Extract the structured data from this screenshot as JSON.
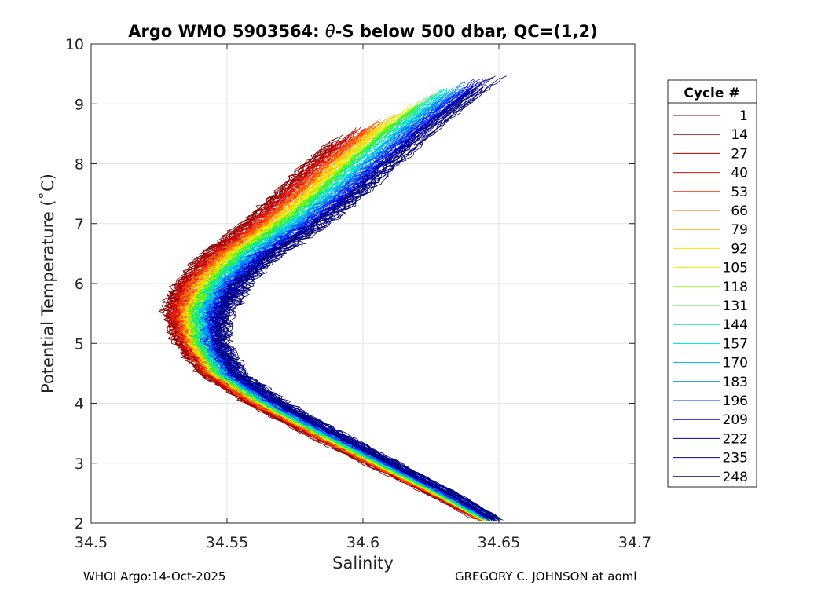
{
  "chart_data": {
    "type": "line",
    "title_prefix": "Argo WMO 5903564: ",
    "title_theta": "θ",
    "title_suffix": "-S below 500 dbar,  QC=(1,2)",
    "xlabel": "Salinity",
    "ylabel": "Potential Temperature (˚C)",
    "xlim": [
      34.5,
      34.7
    ],
    "ylim": [
      2,
      10
    ],
    "x_ticks": [
      34.5,
      34.55,
      34.6,
      34.65,
      34.7
    ],
    "x_tick_labels": [
      "34.5",
      "34.55",
      "34.6",
      "34.65",
      "34.7"
    ],
    "y_ticks": [
      2,
      3,
      4,
      5,
      6,
      7,
      8,
      9,
      10
    ],
    "y_tick_labels": [
      "2",
      "3",
      "4",
      "5",
      "6",
      "7",
      "8",
      "9",
      "10"
    ],
    "grid": true,
    "legend_title": "Cycle #",
    "legend_position": "outside-right",
    "legend_entries": [
      {
        "label": "1",
        "color": "#800000"
      },
      {
        "label": "14",
        "color": "#a00000"
      },
      {
        "label": "27",
        "color": "#c00000"
      },
      {
        "label": "40",
        "color": "#e01010"
      },
      {
        "label": "53",
        "color": "#ff2a00"
      },
      {
        "label": "66",
        "color": "#ff6a00"
      },
      {
        "label": "79",
        "color": "#ffaa00"
      },
      {
        "label": "92",
        "color": "#ffdd00"
      },
      {
        "label": "105",
        "color": "#ccff00"
      },
      {
        "label": "118",
        "color": "#88ff00"
      },
      {
        "label": "131",
        "color": "#33ee33"
      },
      {
        "label": "144",
        "color": "#00e6a0"
      },
      {
        "label": "157",
        "color": "#00dddd"
      },
      {
        "label": "170",
        "color": "#00aaff"
      },
      {
        "label": "183",
        "color": "#0070ff"
      },
      {
        "label": "196",
        "color": "#0035ff"
      },
      {
        "label": "209",
        "color": "#0000e0"
      },
      {
        "label": "222",
        "color": "#0000b0"
      },
      {
        "label": "235",
        "color": "#00008a"
      },
      {
        "label": "248",
        "color": "#000070"
      }
    ],
    "profile_shape": {
      "temperature": [
        2.05,
        2.5,
        3.0,
        3.5,
        4.0,
        4.5,
        5.0,
        5.5,
        6.0,
        6.5,
        7.0,
        7.5,
        8.0,
        8.5,
        8.9
      ],
      "salinity_early_cycles": [
        34.643,
        34.624,
        34.601,
        34.579,
        34.558,
        34.541,
        34.532,
        34.528,
        34.532,
        34.542,
        34.556,
        34.568,
        34.579,
        34.592,
        34.603
      ],
      "salinity_late_cycles": [
        34.65,
        34.633,
        34.612,
        34.591,
        34.571,
        34.555,
        34.549,
        34.55,
        34.557,
        34.569,
        34.586,
        34.6,
        34.612,
        34.624,
        34.635
      ],
      "max_temperature_by_cycle": [
        8.35,
        8.6,
        9.05,
        9.3,
        9.35
      ]
    }
  },
  "footer": {
    "left": "WHOI Argo:14-Oct-2025",
    "right": "GREGORY C. JOHNSON at aoml"
  }
}
